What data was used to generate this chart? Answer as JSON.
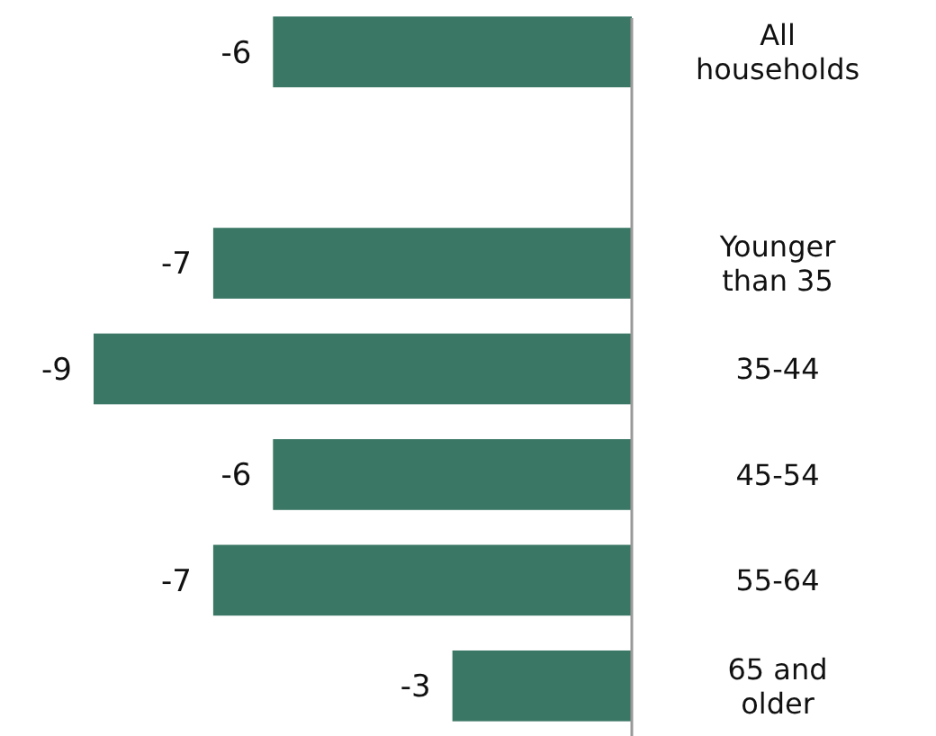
{
  "chart_data": {
    "type": "bar",
    "orientation": "horizontal",
    "categories": [
      "All households",
      null,
      "Younger than 35",
      "35-44",
      "45-54",
      "55-64",
      "65 and older"
    ],
    "values": [
      -6,
      null,
      -7,
      -9,
      -6,
      -7,
      -3
    ],
    "color": "#3a7765",
    "xlim": [
      -9,
      0
    ],
    "data_labels": true
  }
}
